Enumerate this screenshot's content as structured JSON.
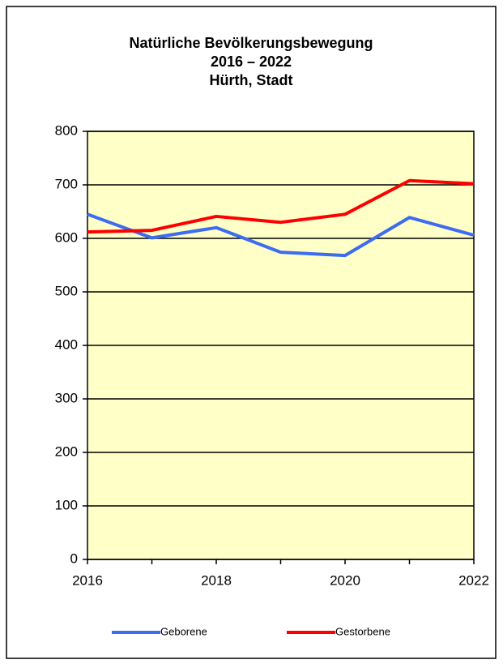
{
  "chart_data": {
    "type": "line",
    "title": [
      "Natürliche Bevölkerungsbewegung",
      "2016 – 2022",
      "Hürth, Stadt"
    ],
    "x": [
      2016,
      2017,
      2018,
      2019,
      2020,
      2021,
      2022
    ],
    "series": [
      {
        "name": "Geborene",
        "color": "#3c6cf0",
        "values": [
          645,
          601,
          620,
          574,
          568,
          639,
          606
        ]
      },
      {
        "name": "Gestorbene",
        "color": "#ff0000",
        "values": [
          612,
          615,
          641,
          630,
          645,
          708,
          702
        ]
      }
    ],
    "xlim": [
      2016,
      2022
    ],
    "xticks": [
      2016,
      2018,
      2020,
      2022
    ],
    "ylim": [
      0,
      800
    ],
    "yticks": [
      0,
      100,
      200,
      300,
      400,
      500,
      600,
      700,
      800
    ],
    "grid": true,
    "plot_background": "#ffffc8",
    "legend": "bottom"
  }
}
